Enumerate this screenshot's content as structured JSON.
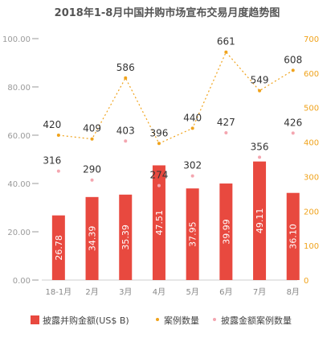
{
  "chart_data": {
    "type": "bar",
    "title": "2018年1-8月中国并购市场宣布交易月度趋势图",
    "categories": [
      "18-1月",
      "2月",
      "3月",
      "4月",
      "5月",
      "6月",
      "7月",
      "8月"
    ],
    "series": [
      {
        "name": "披露并购金额(US$ B)",
        "type": "bar",
        "axis": "left",
        "color": "#e8493f",
        "values": [
          26.78,
          34.39,
          35.39,
          47.51,
          37.95,
          39.99,
          49.11,
          36.1
        ],
        "labels": [
          "26.78",
          "34.39",
          "35.39",
          "47.51",
          "37.95",
          "39.99",
          "49.11",
          "36.10"
        ]
      },
      {
        "name": "案例数量",
        "type": "line",
        "axis": "right",
        "color": "#f0a31c",
        "values": [
          420,
          409,
          586,
          396,
          440,
          661,
          549,
          608
        ]
      },
      {
        "name": "披露金额案例数量",
        "type": "scatter",
        "axis": "right",
        "color": "#f4a6b0",
        "values": [
          316,
          290,
          403,
          274,
          302,
          427,
          356,
          426
        ]
      }
    ],
    "y_left": {
      "ylim": [
        0,
        100
      ],
      "ticks": [
        "0.00",
        "20.00",
        "40.00",
        "60.00",
        "80.00",
        "100.00"
      ]
    },
    "y_right": {
      "ylim": [
        0,
        700
      ],
      "ticks": [
        "0",
        "100",
        "200",
        "300",
        "400",
        "500",
        "600",
        "700"
      ]
    },
    "grid": false,
    "legend": "bottom"
  }
}
